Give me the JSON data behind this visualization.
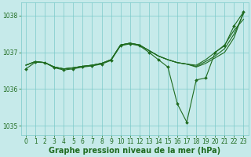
{
  "bg_color": "#c6eaea",
  "grid_color": "#7ccaca",
  "line_color": "#1f6b1f",
  "marker_color": "#1f6b1f",
  "xlabel": "Graphe pression niveau de la mer (hPa)",
  "ylim": [
    1034.75,
    1038.35
  ],
  "xlim": [
    -0.5,
    23.5
  ],
  "yticks": [
    1035,
    1036,
    1037,
    1038
  ],
  "xticks": [
    0,
    1,
    2,
    3,
    4,
    5,
    6,
    7,
    8,
    9,
    10,
    11,
    12,
    13,
    14,
    15,
    16,
    17,
    18,
    19,
    20,
    21,
    22,
    23
  ],
  "series_no_marker": [
    [
      1036.65,
      1036.75,
      1036.72,
      1036.6,
      1036.55,
      1036.58,
      1036.62,
      1036.65,
      1036.7,
      1036.8,
      1037.2,
      1037.25,
      1037.2,
      1037.05,
      1036.9,
      1036.8,
      1036.72,
      1036.68,
      1036.65,
      1036.8,
      1037.0,
      1037.2,
      1037.6,
      1037.9
    ],
    [
      1036.65,
      1036.75,
      1036.72,
      1036.6,
      1036.55,
      1036.58,
      1036.62,
      1036.65,
      1036.7,
      1036.8,
      1037.2,
      1037.25,
      1037.2,
      1037.05,
      1036.9,
      1036.8,
      1036.72,
      1036.68,
      1036.62,
      1036.75,
      1036.9,
      1037.1,
      1037.5,
      1038.05
    ],
    [
      1036.65,
      1036.75,
      1036.72,
      1036.6,
      1036.55,
      1036.58,
      1036.62,
      1036.65,
      1036.7,
      1036.8,
      1037.2,
      1037.25,
      1037.2,
      1037.05,
      1036.9,
      1036.8,
      1036.72,
      1036.68,
      1036.6,
      1036.7,
      1036.85,
      1037.0,
      1037.4,
      1038.1
    ]
  ],
  "series_with_marker": [
    [
      1036.55,
      1036.73,
      1036.72,
      1036.58,
      1036.52,
      1036.55,
      1036.6,
      1036.63,
      1036.68,
      1036.78,
      1037.18,
      1037.23,
      1037.18,
      1037.0,
      1036.8,
      1036.6,
      1035.6,
      1035.1,
      1036.25,
      1036.3,
      1037.0,
      1037.18,
      1037.72,
      1038.1
    ]
  ],
  "text_color": "#1f6b1f",
  "xlabel_fontsize": 7,
  "tick_fontsize": 5.5,
  "line_width": 0.8,
  "marker_size": 2.0
}
